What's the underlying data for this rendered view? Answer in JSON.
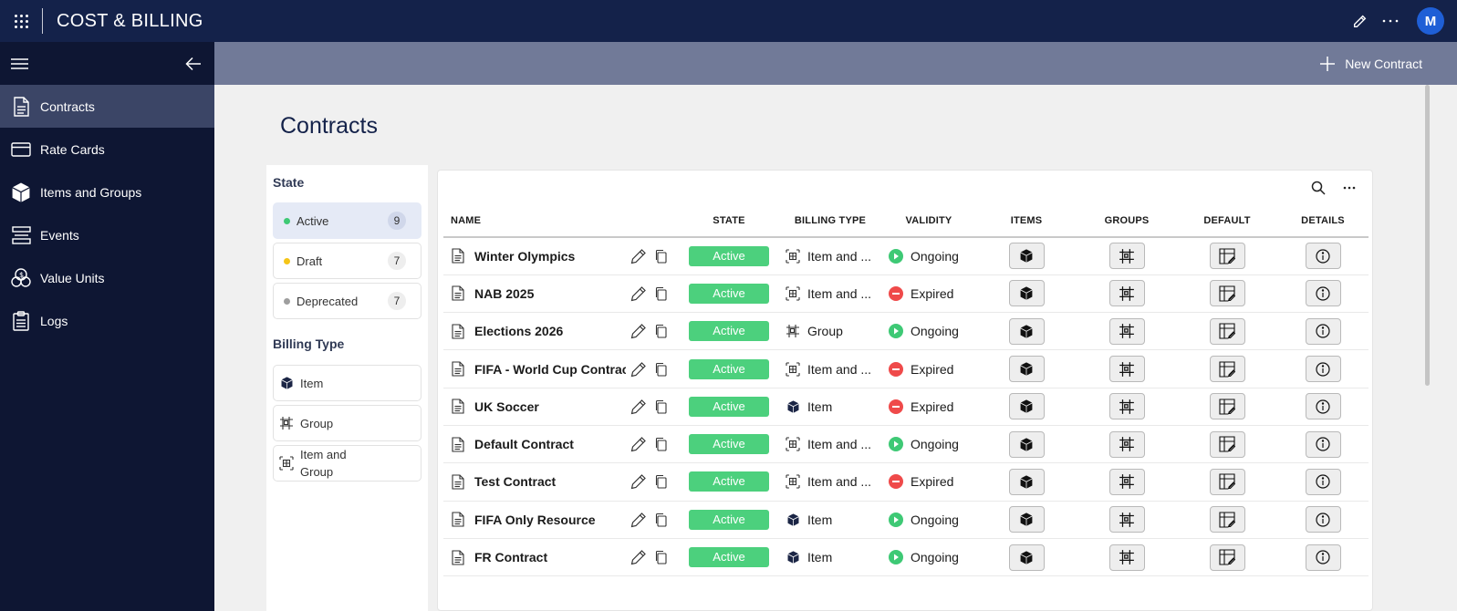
{
  "app": {
    "title": "COST & BILLING",
    "user_initial": "M"
  },
  "colors": {
    "topbar": "#14224a",
    "sidebar": "#0e1633",
    "cmdbar": "#717a98",
    "active_green": "#4cd07d",
    "ongoing_green": "#3ec975",
    "expired_red": "#ef4a4a",
    "avatar": "#1f5fd6"
  },
  "sidebar": {
    "items": [
      {
        "label": "Contracts",
        "icon": "document-icon",
        "selected": true
      },
      {
        "label": "Rate Cards",
        "icon": "card-icon"
      },
      {
        "label": "Items and Groups",
        "icon": "cube-icon"
      },
      {
        "label": "Events",
        "icon": "events-icon"
      },
      {
        "label": "Value Units",
        "icon": "coins-icon"
      },
      {
        "label": "Logs",
        "icon": "clipboard-icon"
      }
    ]
  },
  "command_bar": {
    "new_contract_label": "New Contract"
  },
  "page": {
    "title": "Contracts"
  },
  "filters": {
    "state_heading": "State",
    "states": [
      {
        "label": "Active",
        "count": "9",
        "color": "#3ec975"
      },
      {
        "label": "Draft",
        "count": "7",
        "color": "#f5c518"
      },
      {
        "label": "Deprecated",
        "count": "7",
        "color": "#9e9e9e"
      }
    ],
    "billing_heading": "Billing Type",
    "billing_types": [
      {
        "label": "Item",
        "icon": "cube-icon"
      },
      {
        "label": "Group",
        "icon": "group-icon"
      },
      {
        "label_line1": "Item and",
        "label_line2": "Group",
        "icon": "item-group-icon"
      }
    ]
  },
  "table": {
    "columns": {
      "name": "NAME",
      "state": "STATE",
      "billing_type": "BILLING TYPE",
      "validity": "VALIDITY",
      "items": "ITEMS",
      "groups": "GROUPS",
      "default": "DEFAULT",
      "details": "DETAILS"
    },
    "rows": [
      {
        "name": "Winter Olympics",
        "state": "Active",
        "billing": "Item and ...",
        "billing_icon": "item-group-icon",
        "validity": "Ongoing"
      },
      {
        "name": "NAB 2025",
        "state": "Active",
        "billing": "Item and ...",
        "billing_icon": "item-group-icon",
        "validity": "Expired"
      },
      {
        "name": "Elections 2026",
        "state": "Active",
        "billing": "Group",
        "billing_icon": "group-icon",
        "validity": "Ongoing"
      },
      {
        "name": "FIFA - World Cup Contract",
        "state": "Active",
        "billing": "Item and ...",
        "billing_icon": "item-group-icon",
        "validity": "Expired"
      },
      {
        "name": "UK Soccer",
        "state": "Active",
        "billing": "Item",
        "billing_icon": "cube-icon",
        "validity": "Expired"
      },
      {
        "name": "Default Contract",
        "state": "Active",
        "billing": "Item and ...",
        "billing_icon": "item-group-icon",
        "validity": "Ongoing"
      },
      {
        "name": "Test Contract",
        "state": "Active",
        "billing": "Item and ...",
        "billing_icon": "item-group-icon",
        "validity": "Expired"
      },
      {
        "name": "FIFA Only Resource",
        "state": "Active",
        "billing": "Item",
        "billing_icon": "cube-icon",
        "validity": "Ongoing"
      },
      {
        "name": "FR Contract",
        "state": "Active",
        "billing": "Item",
        "billing_icon": "cube-icon",
        "validity": "Ongoing"
      }
    ]
  }
}
